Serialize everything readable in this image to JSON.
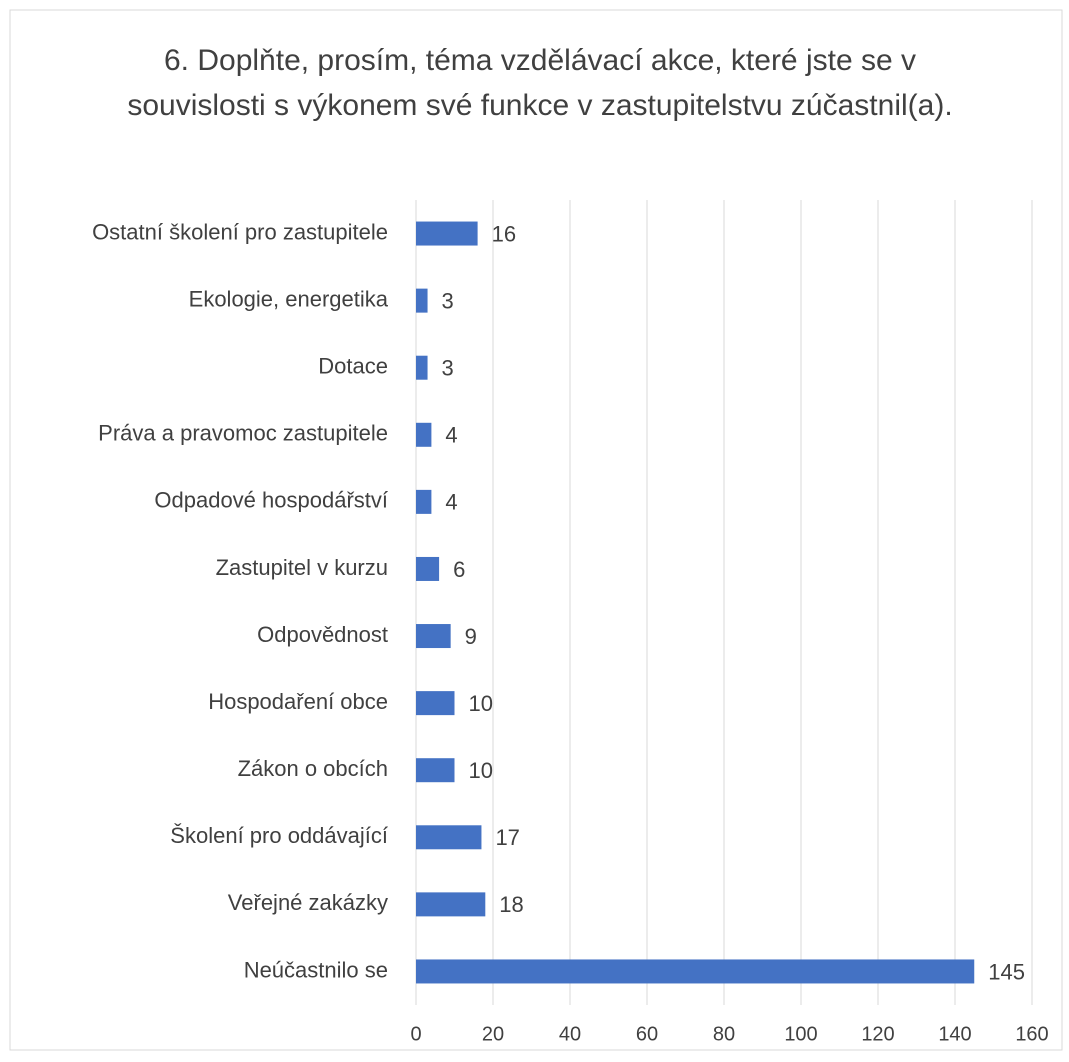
{
  "chart_data": {
    "type": "bar",
    "orientation": "horizontal",
    "title": "6. Doplňte, prosím, téma vzdělávací akce, které jste se v souvislosti s výkonem své funkce v zastupitelstvu zúčastnil(a).",
    "categories": [
      "Ostatní školení pro zastupitele",
      "Ekologie, energetika",
      "Dotace",
      "Práva a pravomoc zastupitele",
      "Odpadové hospodářství",
      "Zastupitel v kurzu",
      "Odpovědnost",
      "Hospodaření obce",
      "Zákon o obcích",
      "Školení pro oddávající",
      "Veřejné zakázky",
      "Neúčastnilo se"
    ],
    "values": [
      16,
      3,
      3,
      4,
      4,
      6,
      9,
      10,
      10,
      17,
      18,
      145
    ],
    "color": "#4472c4",
    "xlim": [
      0,
      160
    ],
    "xticks": [
      0,
      20,
      40,
      60,
      80,
      100,
      120,
      140,
      160
    ],
    "grid": true
  }
}
